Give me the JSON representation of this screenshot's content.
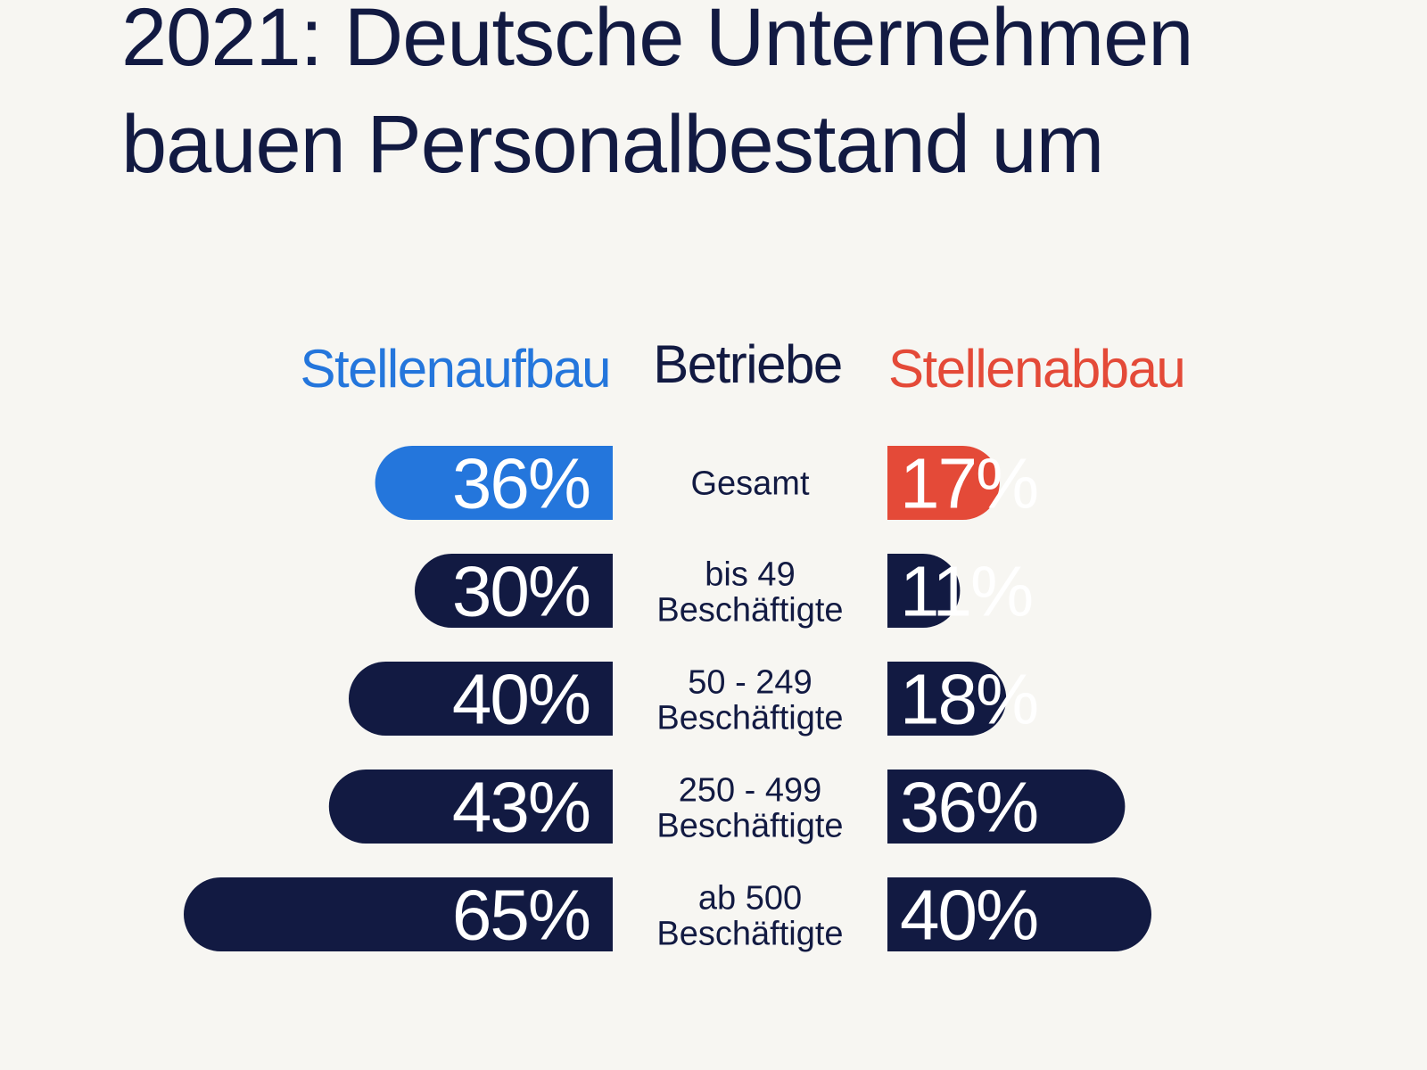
{
  "title": {
    "line1": "2021: Deutsche Unternehmen",
    "line2": "bauen Personalbestand um"
  },
  "colors": {
    "background": "#f7f6f2",
    "navy": "#121a42",
    "blue": "#2476dc",
    "red": "#e44a38",
    "white": "#ffffff"
  },
  "chart_data": {
    "type": "bar",
    "column_headers": {
      "left": "Stellenaufbau",
      "center": "Betriebe",
      "right": "Stellenabbau"
    },
    "categories": [
      [
        "Gesamt"
      ],
      [
        "bis 49",
        "Beschäftigte"
      ],
      [
        "50 - 249",
        "Beschäftigte"
      ],
      [
        "250 - 499",
        "Beschäftigte"
      ],
      [
        "ab 500",
        "Beschäftigte"
      ]
    ],
    "series": [
      {
        "name": "Stellenaufbau",
        "values": [
          36,
          30,
          40,
          43,
          65
        ],
        "labels": [
          "36%",
          "30%",
          "40%",
          "43%",
          "65%"
        ]
      },
      {
        "name": "Stellenabbau",
        "values": [
          17,
          11,
          18,
          36,
          40
        ],
        "labels": [
          "17%",
          "11%",
          "18%",
          "36%",
          "40%"
        ]
      }
    ],
    "highlight_category": "Gesamt",
    "unit": "%"
  }
}
